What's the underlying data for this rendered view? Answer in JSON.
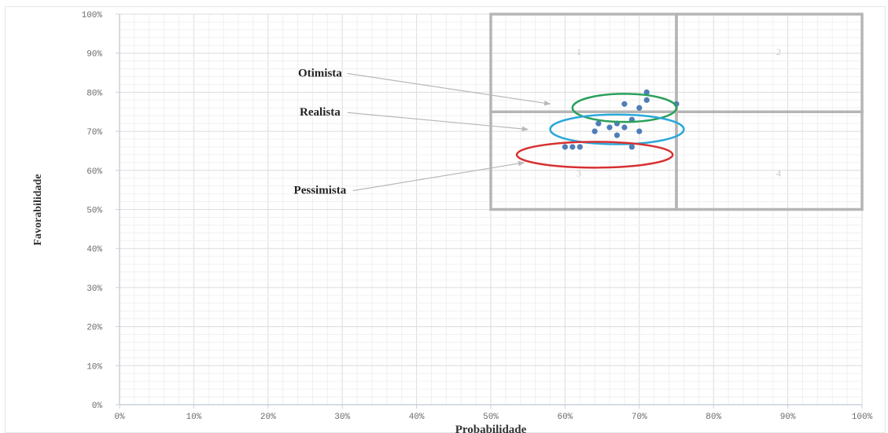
{
  "chart_data": {
    "type": "scatter",
    "title": "",
    "xlabel": "Probabilidade",
    "ylabel": "Favorabilidade",
    "xlim": [
      0,
      100
    ],
    "ylim": [
      0,
      100
    ],
    "x_ticks": [
      "0%",
      "10%",
      "20%",
      "30%",
      "40%",
      "50%",
      "60%",
      "70%",
      "80%",
      "90%",
      "100%"
    ],
    "y_ticks": [
      "0%",
      "10%",
      "20%",
      "30%",
      "40%",
      "50%",
      "60%",
      "70%",
      "80%",
      "90%",
      "100%"
    ],
    "grid": true,
    "series": [
      {
        "color": "#4f7db8",
        "points": [
          {
            "x": 60,
            "y": 66
          },
          {
            "x": 61,
            "y": 66
          },
          {
            "x": 62,
            "y": 66
          },
          {
            "x": 64,
            "y": 70
          },
          {
            "x": 64.5,
            "y": 72
          },
          {
            "x": 66,
            "y": 71
          },
          {
            "x": 67,
            "y": 72
          },
          {
            "x": 67,
            "y": 69
          },
          {
            "x": 68,
            "y": 71
          },
          {
            "x": 68,
            "y": 77
          },
          {
            "x": 69,
            "y": 73
          },
          {
            "x": 69,
            "y": 66
          },
          {
            "x": 70,
            "y": 76
          },
          {
            "x": 70,
            "y": 70
          },
          {
            "x": 71,
            "y": 78
          },
          {
            "x": 71,
            "y": 80
          },
          {
            "x": 75,
            "y": 77
          }
        ]
      }
    ],
    "quadrants": [
      {
        "label": "1",
        "x_range": [
          50,
          75
        ],
        "y_range": [
          75,
          100
        ]
      },
      {
        "label": "2",
        "x_range": [
          75,
          100
        ],
        "y_range": [
          75,
          100
        ]
      },
      {
        "label": "3",
        "x_range": [
          50,
          75
        ],
        "y_range": [
          50,
          75
        ]
      },
      {
        "label": "4",
        "x_range": [
          75,
          100
        ],
        "y_range": [
          50,
          75
        ]
      }
    ],
    "scenarios": [
      {
        "label": "Otimista",
        "color": "#2aa05a",
        "cx": 68,
        "cy": 76,
        "rx": 7,
        "ry": 3.6,
        "text_at": [
          27,
          84
        ],
        "arrow_to": [
          58,
          77
        ]
      },
      {
        "label": "Realista",
        "color": "#2aa8d8",
        "cx": 67,
        "cy": 70.5,
        "rx": 9,
        "ry": 3.8,
        "text_at": [
          27,
          74
        ],
        "arrow_to": [
          55,
          70.5
        ]
      },
      {
        "label": "Pessimista",
        "color": "#d83030",
        "cx": 64,
        "cy": 64,
        "rx": 10.5,
        "ry": 3.3,
        "text_at": [
          27,
          54
        ],
        "arrow_to": [
          54.5,
          62
        ]
      }
    ]
  }
}
